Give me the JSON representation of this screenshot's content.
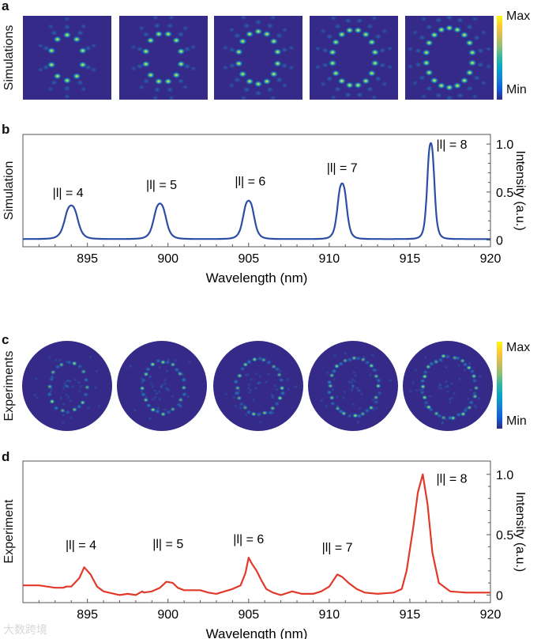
{
  "panels": {
    "a": "a",
    "b": "b",
    "c": "c",
    "d": "d"
  },
  "row_labels": {
    "a": "Simulations",
    "b": "Simulation",
    "c": "Experiments",
    "d": "Experiment"
  },
  "colorbar": {
    "max": "Max",
    "min": "Min",
    "colors": [
      "#352a87",
      "#0f5cdd",
      "#1481d6",
      "#06a4ca",
      "#2eb7a4",
      "#87bf77",
      "#d1bb59",
      "#fec832",
      "#f9fb0e"
    ]
  },
  "mode_images": {
    "orders": [
      4,
      5,
      6,
      7,
      8
    ]
  },
  "watermark": "大数跨境",
  "chart_data": [
    {
      "type": "line",
      "panel": "b",
      "title": "",
      "xlabel": "Wavelength (nm)",
      "ylabel": "Intensity (a.u.)",
      "xlim": [
        891,
        920
      ],
      "ylim": [
        -0.07,
        1.1
      ],
      "xticks": [
        "895",
        "900",
        "905",
        "910",
        "915",
        "920"
      ],
      "yticks": [
        "0",
        "0.5",
        "1.0"
      ],
      "color": "#2c4ea3",
      "baseline": 0.01,
      "peaks": [
        {
          "x": 894.0,
          "y": 0.35,
          "w": 0.45
        },
        {
          "x": 899.5,
          "y": 0.37,
          "w": 0.42
        },
        {
          "x": 905.0,
          "y": 0.4,
          "w": 0.38
        },
        {
          "x": 910.8,
          "y": 0.58,
          "w": 0.32
        },
        {
          "x": 916.3,
          "y": 1.0,
          "w": 0.25
        }
      ],
      "annotations": [
        {
          "text": "|l| = 4",
          "x": 893.8,
          "y": 0.45
        },
        {
          "text": "|l| = 5",
          "x": 899.6,
          "y": 0.53
        },
        {
          "text": "|l| = 6",
          "x": 905.1,
          "y": 0.57
        },
        {
          "text": "|l| = 7",
          "x": 910.8,
          "y": 0.71
        },
        {
          "text": "|l| = 8",
          "x": 917.6,
          "y": 0.95
        }
      ]
    },
    {
      "type": "line",
      "panel": "d",
      "title": "",
      "xlabel": "Wavelength (nm)",
      "ylabel": "Intensity (a.u.)",
      "xlim": [
        891,
        920
      ],
      "ylim": [
        -0.063,
        1.11
      ],
      "xticks": [
        "895",
        "900",
        "905",
        "910",
        "915",
        "920"
      ],
      "yticks": [
        "0",
        "0.5",
        "1.0"
      ],
      "color": "#e03a2a",
      "x": [
        891,
        892,
        893,
        893.5,
        893.7,
        894,
        894.5,
        894.8,
        895.2,
        895.6,
        896,
        897,
        897.5,
        898,
        898.4,
        898.5,
        899,
        899.5,
        899.9,
        900.3,
        900.6,
        901,
        901.5,
        902,
        902.5,
        903,
        903.5,
        904,
        904.5,
        904.8,
        905.0,
        905.2,
        905.5,
        905.8,
        906.1,
        906.5,
        907,
        907.7,
        908.3,
        909,
        909.5,
        910,
        910.5,
        910.8,
        911.2,
        911.7,
        912.2,
        913,
        914,
        914.5,
        914.8,
        915.2,
        915.5,
        915.8,
        916.1,
        916.4,
        916.8,
        917.5,
        918.5,
        920
      ],
      "y": [
        0.08,
        0.08,
        0.06,
        0.06,
        0.07,
        0.07,
        0.14,
        0.23,
        0.17,
        0.07,
        0.03,
        0.0,
        0.01,
        0.0,
        0.03,
        0.02,
        0.03,
        0.06,
        0.11,
        0.1,
        0.06,
        0.04,
        0.04,
        0.04,
        0.02,
        0.01,
        0.03,
        0.05,
        0.08,
        0.18,
        0.31,
        0.26,
        0.2,
        0.12,
        0.05,
        0.02,
        0.0,
        0.03,
        0.01,
        0.01,
        0.03,
        0.07,
        0.17,
        0.15,
        0.1,
        0.05,
        0.02,
        0.01,
        0.02,
        0.05,
        0.2,
        0.55,
        0.85,
        1.0,
        0.75,
        0.35,
        0.1,
        0.03,
        0.02,
        0.02
      ],
      "annotations": [
        {
          "text": "|l| = 4",
          "x": 894.6,
          "y": 0.38
        },
        {
          "text": "|l| = 5",
          "x": 900.0,
          "y": 0.39
        },
        {
          "text": "|l| = 6",
          "x": 905.0,
          "y": 0.43
        },
        {
          "text": "|l| = 7",
          "x": 910.5,
          "y": 0.36
        },
        {
          "text": "|l| = 8",
          "x": 917.6,
          "y": 0.93
        }
      ]
    }
  ]
}
